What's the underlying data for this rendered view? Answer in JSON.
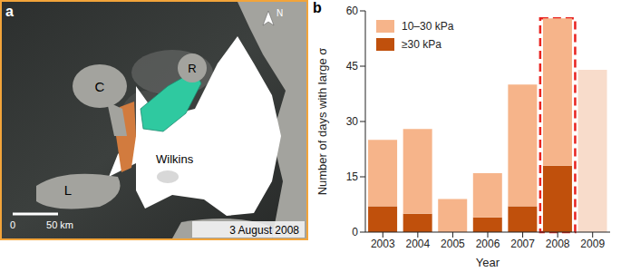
{
  "map": {
    "panel_label": "a",
    "north": "N",
    "labels": {
      "charcot": "C",
      "rothschild": "R",
      "latady": "L",
      "shelf": "Wilkins"
    },
    "scale_bar": {
      "start": "0",
      "end": "50 km"
    },
    "date": "3 August 2008"
  },
  "chart_data": {
    "panel_label": "b",
    "type": "bar",
    "stacked": true,
    "categories": [
      "2003",
      "2004",
      "2005",
      "2006",
      "2007",
      "2008",
      "2009"
    ],
    "series": [
      {
        "name": "10–30 kPa",
        "color": "#f6b48a",
        "colors": [
          "#f6b48a",
          "#f6b48a",
          "#f6b48a",
          "#f6b48a",
          "#f6b48a",
          "#f6b48a",
          "#f8dccb"
        ],
        "values": [
          18,
          23,
          9,
          12,
          33,
          40,
          44
        ]
      },
      {
        "name": "≥30 kPa",
        "color": "#c0500c",
        "values": [
          7,
          5,
          0,
          4,
          7,
          18,
          0
        ]
      }
    ],
    "x_label": "Year",
    "y_label": "Number of days with large σ",
    "ylim": [
      0,
      60
    ],
    "yticks": [
      0,
      15,
      30,
      45,
      60
    ],
    "legend": "upper left",
    "grid": false
  }
}
